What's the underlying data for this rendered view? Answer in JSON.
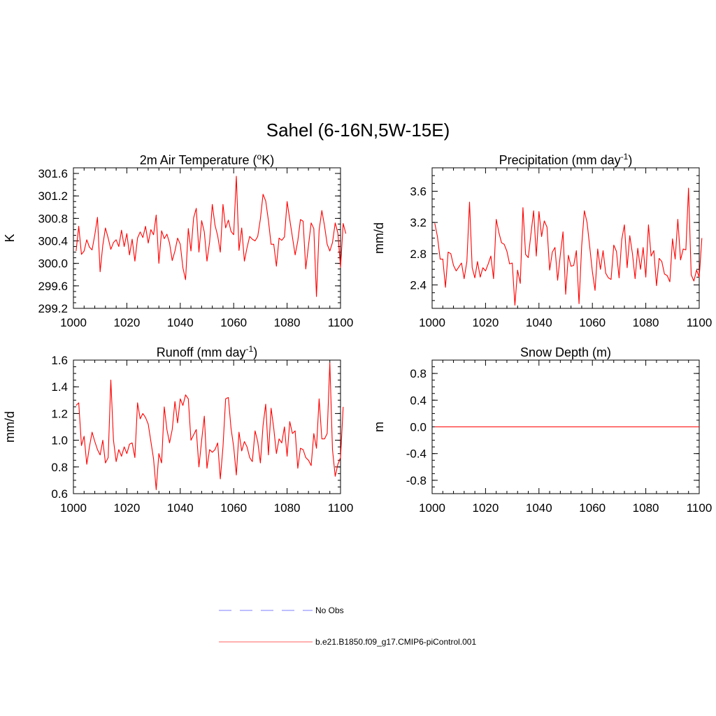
{
  "figure": {
    "title": "Sahel (6-16N,5W-15E)"
  },
  "chart_data": [
    {
      "type": "line",
      "title": "2m Air Temperature (",
      "title_unit_sup": "o",
      "title_unit_tail": "K)",
      "xlabel": "",
      "ylabel": "K",
      "xlim": [
        1000,
        1100
      ],
      "ylim": [
        299.2,
        301.7
      ],
      "xticks": [
        1000,
        1020,
        1040,
        1060,
        1080,
        1100
      ],
      "xtick_labels": [
        "1000",
        "1020",
        "1040",
        "1060",
        "1080",
        "1100"
      ],
      "yticks": [
        299.2,
        299.6,
        300.0,
        300.4,
        300.8,
        301.2,
        301.6
      ],
      "ytick_labels": [
        "299.2",
        "299.6",
        "300.0",
        "300.4",
        "300.8",
        "301.2",
        "301.6"
      ],
      "x_start": 1001,
      "series": [
        {
          "name": "b.e21.B1850.f09_g17.CMIP6-piControl.001",
          "color": "#ff0000",
          "values": [
            300.22,
            300.66,
            300.16,
            300.22,
            300.42,
            300.29,
            300.24,
            300.51,
            300.82,
            299.85,
            300.32,
            300.63,
            300.45,
            300.25,
            300.37,
            300.42,
            300.3,
            300.59,
            300.3,
            300.53,
            300.15,
            300.43,
            300.04,
            300.45,
            300.56,
            300.46,
            300.66,
            300.36,
            300.6,
            300.51,
            300.86,
            300.0,
            300.58,
            300.44,
            300.52,
            300.36,
            300.05,
            300.22,
            300.45,
            300.34,
            299.92,
            299.71,
            300.62,
            300.22,
            300.81,
            300.98,
            300.2,
            300.76,
            300.56,
            300.04,
            300.38,
            301.05,
            300.68,
            300.49,
            300.2,
            301.05,
            300.63,
            300.77,
            300.57,
            300.51,
            301.55,
            300.23,
            300.63,
            300.04,
            300.28,
            300.48,
            300.43,
            300.4,
            300.48,
            300.79,
            301.23,
            301.11,
            300.76,
            300.34,
            300.34,
            299.95,
            300.45,
            300.41,
            300.47,
            301.1,
            300.78,
            300.47,
            300.15,
            300.4,
            300.78,
            300.75,
            299.9,
            300.32,
            300.72,
            300.62,
            299.41,
            300.59,
            300.94,
            300.67,
            300.34,
            300.22,
            300.37,
            300.72,
            300.54,
            299.93,
            300.71,
            300.53
          ]
        }
      ]
    },
    {
      "type": "line",
      "title": "Precipitation (mm day",
      "title_unit_sup": "-1",
      "title_unit_tail": ")",
      "xlabel": "",
      "ylabel": "mm/d",
      "xlim": [
        1000,
        1100
      ],
      "ylim": [
        2.1,
        3.9
      ],
      "xticks": [
        1000,
        1020,
        1040,
        1060,
        1080,
        1100
      ],
      "xtick_labels": [
        "1000",
        "1020",
        "1040",
        "1060",
        "1080",
        "1100"
      ],
      "yticks": [
        2.4,
        2.8,
        3.2,
        3.6
      ],
      "ytick_labels": [
        "2.4",
        "2.8",
        "3.2",
        "3.6"
      ],
      "x_start": 1001,
      "series": [
        {
          "name": "b.e21.B1850.f09_g17.CMIP6-piControl.001",
          "color": "#ff0000",
          "values": [
            3.19,
            3.02,
            2.73,
            2.73,
            2.37,
            2.82,
            2.8,
            2.65,
            2.58,
            2.63,
            2.68,
            2.48,
            2.7,
            3.46,
            2.62,
            2.49,
            2.7,
            2.5,
            2.62,
            2.58,
            2.67,
            2.77,
            2.48,
            3.24,
            3.07,
            2.94,
            2.92,
            2.83,
            2.67,
            2.68,
            2.14,
            2.59,
            2.42,
            3.39,
            2.79,
            2.75,
            3.05,
            3.35,
            2.77,
            3.34,
            3.02,
            3.22,
            3.14,
            2.59,
            2.82,
            2.88,
            2.46,
            2.79,
            3.08,
            2.28,
            2.78,
            2.64,
            2.65,
            2.84,
            2.16,
            2.9,
            3.35,
            3.2,
            2.89,
            2.57,
            2.33,
            2.86,
            2.6,
            2.84,
            2.55,
            2.49,
            2.47,
            2.91,
            2.83,
            2.49,
            2.98,
            3.17,
            2.62,
            3.03,
            2.8,
            2.48,
            2.87,
            2.6,
            2.88,
            2.5,
            3.17,
            2.77,
            2.84,
            2.39,
            2.74,
            2.7,
            2.54,
            2.52,
            2.44,
            2.99,
            2.73,
            3.24,
            2.72,
            2.86,
            2.85,
            3.64,
            2.53,
            2.45,
            2.59,
            2.5,
            3.0
          ]
        }
      ]
    },
    {
      "type": "line",
      "title": "Runoff (mm day",
      "title_unit_sup": "-1",
      "title_unit_tail": ")",
      "xlabel": "",
      "ylabel": "mm/d",
      "xlim": [
        1000,
        1100
      ],
      "ylim": [
        0.6,
        1.6
      ],
      "xticks": [
        1000,
        1020,
        1040,
        1060,
        1080,
        1100
      ],
      "xtick_labels": [
        "1000",
        "1020",
        "1040",
        "1060",
        "1080",
        "1100"
      ],
      "yticks": [
        0.6,
        0.8,
        1.0,
        1.2,
        1.4,
        1.6
      ],
      "ytick_labels": [
        "0.6",
        "0.8",
        "1.0",
        "1.2",
        "1.4",
        "1.6"
      ],
      "x_start": 1001,
      "series": [
        {
          "name": "b.e21.B1850.f09_g17.CMIP6-piControl.001",
          "color": "#ff0000",
          "values": [
            1.26,
            1.28,
            0.96,
            1.03,
            0.82,
            0.95,
            1.06,
            0.99,
            0.93,
            0.89,
            1.0,
            0.83,
            0.87,
            1.45,
            1.0,
            0.84,
            0.93,
            0.88,
            0.95,
            0.9,
            0.97,
            0.98,
            0.87,
            1.28,
            1.16,
            1.2,
            1.17,
            1.12,
            0.99,
            0.86,
            0.63,
            0.9,
            0.83,
            1.25,
            1.08,
            0.98,
            1.08,
            1.29,
            1.13,
            1.31,
            1.26,
            1.34,
            1.31,
            1.0,
            1.04,
            1.08,
            0.8,
            1.0,
            1.18,
            0.79,
            0.93,
            0.91,
            0.93,
            0.98,
            0.71,
            0.95,
            1.31,
            1.32,
            1.09,
            0.95,
            0.74,
            1.06,
            0.92,
            0.99,
            0.95,
            0.87,
            0.84,
            1.07,
            0.99,
            0.83,
            1.11,
            1.27,
            0.89,
            1.24,
            1.09,
            0.9,
            1.01,
            0.98,
            1.1,
            0.88,
            1.14,
            1.05,
            1.07,
            0.79,
            0.94,
            0.93,
            0.87,
            0.85,
            0.81,
            1.05,
            0.94,
            1.31,
            1.01,
            1.01,
            1.05,
            1.58,
            0.93,
            0.73,
            0.82,
            0.87,
            1.25
          ]
        }
      ]
    },
    {
      "type": "line",
      "title": "Snow Depth (m)",
      "title_unit_sup": "",
      "title_unit_tail": "",
      "xlabel": "",
      "ylabel": "m",
      "xlim": [
        1000,
        1100
      ],
      "ylim": [
        -1.0,
        1.0
      ],
      "xticks": [
        1000,
        1020,
        1040,
        1060,
        1080,
        1100
      ],
      "xtick_labels": [
        "1000",
        "1020",
        "1040",
        "1060",
        "1080",
        "1100"
      ],
      "yticks": [
        -0.8,
        -0.4,
        0.0,
        0.4,
        0.8
      ],
      "ytick_labels": [
        "-0.8",
        "-0.4",
        "0.0",
        "0.4",
        "0.8"
      ],
      "x_start": 1001,
      "series": [
        {
          "name": "b.e21.B1850.f09_g17.CMIP6-piControl.001",
          "color": "#ff0000",
          "values": [
            0.0,
            0.0,
            0.0,
            0.0,
            0.0,
            0.0,
            0.0,
            0.0,
            0.0,
            0.0,
            0.0,
            0.0,
            0.0,
            0.0,
            0.0,
            0.0,
            0.0,
            0.0,
            0.0,
            0.0,
            0.0,
            0.0,
            0.0,
            0.0,
            0.0,
            0.0,
            0.0,
            0.0,
            0.0,
            0.0,
            0.0,
            0.0,
            0.0,
            0.0,
            0.0,
            0.0,
            0.0,
            0.0,
            0.0,
            0.0,
            0.0,
            0.0,
            0.0,
            0.0,
            0.0,
            0.0,
            0.0,
            0.0,
            0.0,
            0.0,
            0.0,
            0.0,
            0.0,
            0.0,
            0.0,
            0.0,
            0.0,
            0.0,
            0.0,
            0.0,
            0.0,
            0.0,
            0.0,
            0.0,
            0.0,
            0.0,
            0.0,
            0.0,
            0.0,
            0.0,
            0.0,
            0.0,
            0.0,
            0.0,
            0.0,
            0.0,
            0.0,
            0.0,
            0.0,
            0.0,
            0.0,
            0.0,
            0.0,
            0.0,
            0.0,
            0.0,
            0.0,
            0.0,
            0.0,
            0.0,
            0.0,
            0.0,
            0.0,
            0.0,
            0.0,
            0.0,
            0.0,
            0.0,
            0.0,
            0.0
          ]
        }
      ]
    }
  ],
  "legend": {
    "placement": "bottom-center",
    "entries": [
      {
        "label": "No Obs",
        "color": "#9999ff",
        "style": "dashed"
      },
      {
        "label": "b.e21.B1850.f09_g17.CMIP6-piControl.001",
        "color": "#ff8080",
        "style": "solid"
      }
    ]
  }
}
